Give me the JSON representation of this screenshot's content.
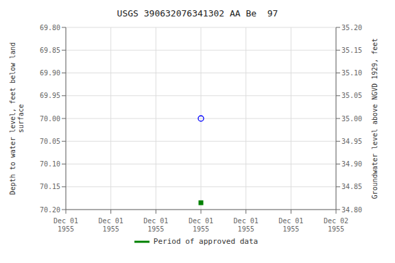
{
  "chart_data": {
    "type": "scatter",
    "title": "USGS 390632076341302 AA Be  97",
    "categories": [
      "Dec 01\n1955",
      "Dec 01\n1955",
      "Dec 01\n1955",
      "Dec 01\n1955",
      "Dec 01\n1955",
      "Dec 01\n1955",
      "Dec 02\n1955"
    ],
    "y_label": "Depth to water level, feet below land\n surface",
    "y2_label": "Groundwater level above NGVD 1929, feet",
    "ylim": [
      70.2,
      69.8
    ],
    "yticks": [
      {
        "value": 69.8,
        "label": "69.80"
      },
      {
        "value": 69.85,
        "label": "69.85"
      },
      {
        "value": 69.9,
        "label": "69.90"
      },
      {
        "value": 69.95,
        "label": "69.95"
      },
      {
        "value": 70.0,
        "label": "70.00"
      },
      {
        "value": 70.05,
        "label": "70.05"
      },
      {
        "value": 70.1,
        "label": "70.10"
      },
      {
        "value": 70.15,
        "label": "70.15"
      },
      {
        "value": 70.2,
        "label": "70.20"
      }
    ],
    "y2lim": [
      34.8,
      35.2
    ],
    "y2ticks": [
      {
        "value": 35.2,
        "label": "35.20"
      },
      {
        "value": 35.15,
        "label": "35.15"
      },
      {
        "value": 35.1,
        "label": "35.10"
      },
      {
        "value": 35.05,
        "label": "35.05"
      },
      {
        "value": 35.0,
        "label": "35.00"
      },
      {
        "value": 34.95,
        "label": "34.95"
      },
      {
        "value": 34.9,
        "label": "34.90"
      },
      {
        "value": 34.85,
        "label": "34.85"
      },
      {
        "value": 34.8,
        "label": "34.80"
      }
    ],
    "series": [
      {
        "color": "#0000ff",
        "marker": "circle",
        "values": [
          null,
          null,
          null,
          70.0,
          null,
          null,
          null
        ]
      },
      {
        "name": "Period of approved data",
        "color": "#008000",
        "marker": "square",
        "values": [
          null,
          null,
          null,
          70.185,
          null,
          null,
          null
        ]
      }
    ],
    "grid": true,
    "legend": "bottom"
  }
}
